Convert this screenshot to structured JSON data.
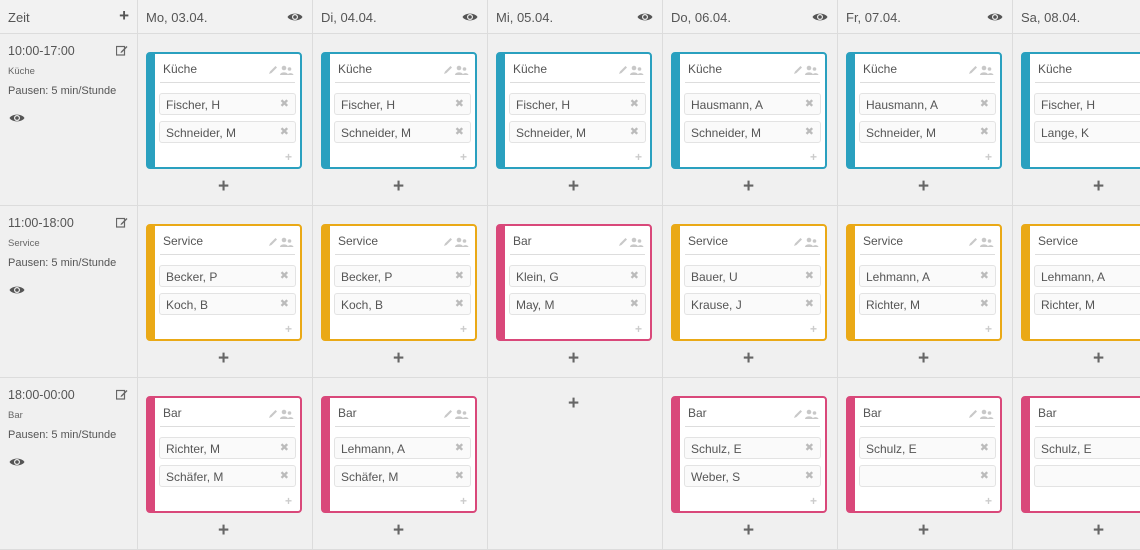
{
  "header": {
    "zeit_label": "Zeit",
    "add_icon": "plus-icon",
    "days": [
      {
        "label": "Mo, 03.04."
      },
      {
        "label": "Di, 04.04."
      },
      {
        "label": "Mi, 05.04."
      },
      {
        "label": "Do, 06.04."
      },
      {
        "label": "Fr, 07.04."
      },
      {
        "label": "Sa, 08.04."
      }
    ]
  },
  "colors": {
    "Küche": "#2aa0bf",
    "Service": "#eaa916",
    "Bar": "#d9487a"
  },
  "rows": [
    {
      "time": "10:00-17:00",
      "area": "Küche",
      "pause": "Pausen: 5 min/Stunde",
      "cells": [
        {
          "title": "Küche",
          "staff": [
            "Fischer, H",
            "Schneider, M"
          ]
        },
        {
          "title": "Küche",
          "staff": [
            "Fischer, H",
            "Schneider, M"
          ]
        },
        {
          "title": "Küche",
          "staff": [
            "Fischer, H",
            "Schneider, M"
          ]
        },
        {
          "title": "Küche",
          "staff": [
            "Hausmann, A",
            "Schneider, M"
          ]
        },
        {
          "title": "Küche",
          "staff": [
            "Hausmann, A",
            "Schneider, M"
          ]
        },
        {
          "title": "Küche",
          "staff": [
            "Fischer, H",
            "Lange, K"
          ]
        }
      ]
    },
    {
      "time": "11:00-18:00",
      "area": "Service",
      "pause": "Pausen: 5 min/Stunde",
      "cells": [
        {
          "title": "Service",
          "staff": [
            "Becker, P",
            "Koch, B"
          ]
        },
        {
          "title": "Service",
          "staff": [
            "Becker, P",
            "Koch, B"
          ]
        },
        {
          "title": "Bar",
          "staff": [
            "Klein, G",
            "May, M"
          ]
        },
        {
          "title": "Service",
          "staff": [
            "Bauer, U",
            "Krause, J"
          ]
        },
        {
          "title": "Service",
          "staff": [
            "Lehmann, A",
            "Richter, M"
          ]
        },
        {
          "title": "Service",
          "staff": [
            "Lehmann, A",
            "Richter, M"
          ]
        }
      ]
    },
    {
      "time": "18:00-00:00",
      "area": "Bar",
      "pause": "Pausen: 5 min/Stunde",
      "cells": [
        {
          "title": "Bar",
          "staff": [
            "Richter, M",
            "Schäfer, M"
          ]
        },
        {
          "title": "Bar",
          "staff": [
            "Lehmann, A",
            "Schäfer, M"
          ]
        },
        null,
        {
          "title": "Bar",
          "staff": [
            "Schulz, E",
            "Weber, S"
          ]
        },
        {
          "title": "Bar",
          "staff": [
            "Schulz, E",
            ""
          ]
        },
        {
          "title": "Bar",
          "staff": [
            "Schulz, E",
            ""
          ]
        }
      ]
    }
  ]
}
